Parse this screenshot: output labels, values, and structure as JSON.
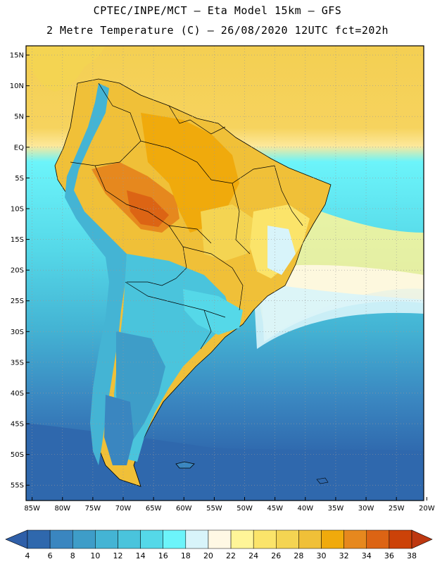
{
  "header": {
    "title_line1": "CPTEC/INPE/MCT –  Eta Model 15km – GFS",
    "title_line2": "2 Metre Temperature (C) – 26/08/2020 12UTC fct=202h"
  },
  "map": {
    "lat_labels": [
      "15N",
      "10N",
      "5N",
      "EQ",
      "5S",
      "10S",
      "15S",
      "20S",
      "25S",
      "30S",
      "35S",
      "40S",
      "45S",
      "50S",
      "55S"
    ],
    "lat_values": [
      15,
      10,
      5,
      0,
      -5,
      -10,
      -15,
      -20,
      -25,
      -30,
      -35,
      -40,
      -45,
      -50,
      -55
    ],
    "lon_labels": [
      "85W",
      "80W",
      "75W",
      "70W",
      "65W",
      "60W",
      "55W",
      "50W",
      "45W",
      "40W",
      "35W",
      "30W",
      "25W",
      "20W"
    ],
    "lon_values": [
      -85,
      -80,
      -75,
      -70,
      -65,
      -60,
      -55,
      -50,
      -45,
      -40,
      -35,
      -30,
      -25,
      -20
    ],
    "lat_range": [
      -57.5,
      16.5
    ],
    "lon_range": [
      -86,
      -20.5
    ]
  },
  "colorbar": {
    "labels": [
      "4",
      "6",
      "8",
      "10",
      "12",
      "14",
      "16",
      "18",
      "20",
      "22",
      "24",
      "26",
      "28",
      "30",
      "32",
      "34",
      "36",
      "38"
    ],
    "colors": [
      "#2f68ad",
      "#3a86c0",
      "#3e9dc8",
      "#44b4d4",
      "#4ac4dc",
      "#55d8e8",
      "#6cf4fa",
      "#d8f4fa",
      "#fff8e4",
      "#fff598",
      "#fbe46a",
      "#f4d452",
      "#f0c038",
      "#f0aa0c",
      "#e6881e",
      "#dc6414",
      "#cc4208"
    ],
    "under_color": "#2f5fa8",
    "over_color": "#bd3810"
  }
}
